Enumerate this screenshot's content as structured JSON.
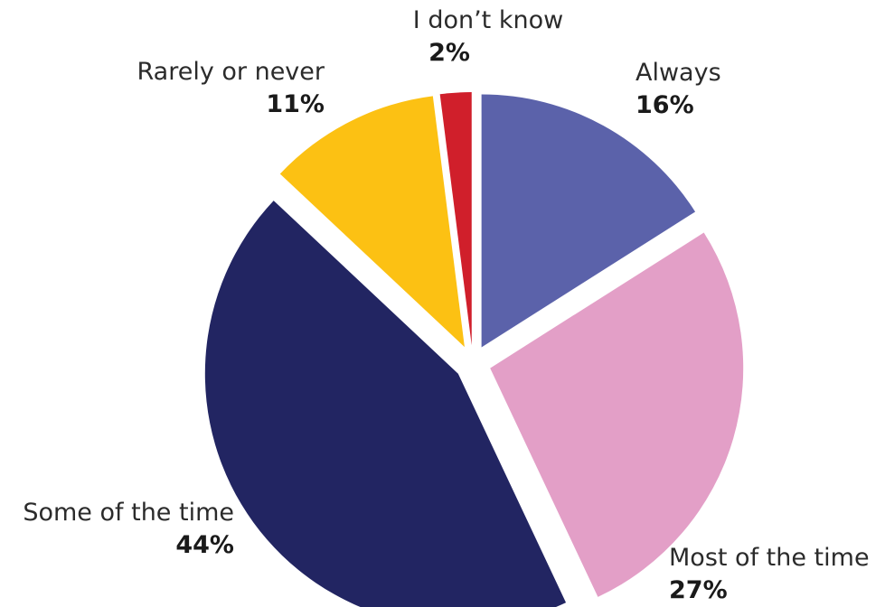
{
  "chart_data": {
    "type": "pie",
    "slices": [
      {
        "label": "Always",
        "value": 16,
        "value_label": "16%",
        "color": "#5b62aa"
      },
      {
        "label": "Most of the time",
        "value": 27,
        "value_label": "27%",
        "color": "#e39fc7"
      },
      {
        "label": "Some of the time",
        "value": 44,
        "value_label": "44%",
        "color": "#222562"
      },
      {
        "label": "Rarely or never",
        "value": 11,
        "value_label": "11%",
        "color": "#fcc113"
      },
      {
        "label": "I don’t know",
        "value": 2,
        "value_label": "2%",
        "color": "#d01f2b"
      }
    ],
    "exploded": true
  }
}
